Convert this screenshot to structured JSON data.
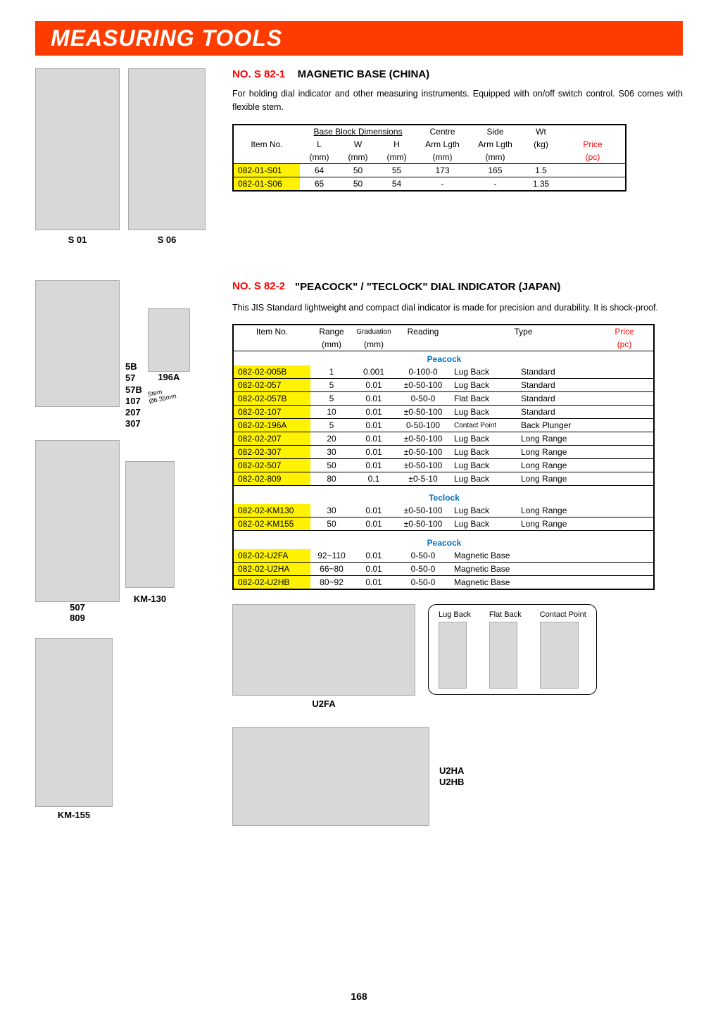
{
  "page_title": "MEASURING TOOLS",
  "page_number": "168",
  "section1": {
    "no": "NO. S 82-1",
    "title": "MAGNETIC BASE (CHINA)",
    "desc": "For holding dial indicator and other measuring instruments. Equipped with  on/off switch control. S06 comes with flexible stem.",
    "img_labels": {
      "s01": "S 01",
      "s06": "S 06"
    },
    "header_group": "Base Block Dimensions",
    "cols": {
      "item": "Item No.",
      "L": "L",
      "W": "W",
      "H": "H",
      "centre": "Centre",
      "side": "Side",
      "wt": "Wt",
      "price": "Price",
      "armlgth": "Arm Lgth",
      "mm": "(mm)",
      "kg": "(kg)",
      "pc": "(pc)"
    },
    "rows": [
      {
        "item": "082-01-S01",
        "L": "64",
        "W": "50",
        "H": "55",
        "centre": "173",
        "side": "165",
        "wt": "1.5",
        "price": ""
      },
      {
        "item": "082-01-S06",
        "L": "65",
        "W": "50",
        "H": "54",
        "centre": "-",
        "side": "-",
        "wt": "1.35",
        "price": ""
      }
    ]
  },
  "section2": {
    "no": "NO. S 82-2",
    "title": "\"PEACOCK\" / \"TECLOCK\" DIAL INDICATOR (JAPAN)",
    "desc": "This JIS Standard lightweight and compact dial indicator is made for precision and durability. It is shock-proof.",
    "left_labels": {
      "a": "5B\n57\n57B\n107\n207\n307",
      "b": "196A",
      "stem": "Stem\nØ6.35mm",
      "c": "507\n809",
      "d": "KM-130",
      "e": "KM-155"
    },
    "cols": {
      "item": "Item No.",
      "range": "Range",
      "grad": "Graduation",
      "reading": "Reading",
      "type": "Type",
      "price": "Price",
      "mm": "(mm)",
      "pc": "(pc)"
    },
    "groups": [
      {
        "name": "Peacock",
        "rows": [
          {
            "item": "082-02-005B",
            "range": "1",
            "grad": "0.001",
            "reading": "0-100-0",
            "type1": "Lug Back",
            "type2": "Standard"
          },
          {
            "item": "082-02-057",
            "range": "5",
            "grad": "0.01",
            "reading": "±0-50-100",
            "type1": "Lug Back",
            "type2": "Standard"
          },
          {
            "item": "082-02-057B",
            "range": "5",
            "grad": "0.01",
            "reading": "0-50-0",
            "type1": "Flat Back",
            "type2": "Standard"
          },
          {
            "item": "082-02-107",
            "range": "10",
            "grad": "0.01",
            "reading": "±0-50-100",
            "type1": "Lug Back",
            "type2": "Standard"
          },
          {
            "item": "082-02-196A",
            "range": "5",
            "grad": "0.01",
            "reading": "0-50-100",
            "type1": "Contact Point",
            "type2": "Back Plunger",
            "small1": true
          },
          {
            "item": "082-02-207",
            "range": "20",
            "grad": "0.01",
            "reading": "±0-50-100",
            "type1": "Lug Back",
            "type2": "Long Range"
          },
          {
            "item": "082-02-307",
            "range": "30",
            "grad": "0.01",
            "reading": "±0-50-100",
            "type1": "Lug Back",
            "type2": "Long Range"
          },
          {
            "item": "082-02-507",
            "range": "50",
            "grad": "0.01",
            "reading": "±0-50-100",
            "type1": "Lug Back",
            "type2": "Long Range"
          },
          {
            "item": "082-02-809",
            "range": "80",
            "grad": "0.1",
            "reading": "±0-5-10",
            "type1": "Lug Back",
            "type2": "Long Range"
          }
        ]
      },
      {
        "name": "Teclock",
        "rows": [
          {
            "item": "082-02-KM130",
            "range": "30",
            "grad": "0.01",
            "reading": "±0-50-100",
            "type1": "Lug Back",
            "type2": "Long Range"
          },
          {
            "item": "082-02-KM155",
            "range": "50",
            "grad": "0.01",
            "reading": "±0-50-100",
            "type1": "Lug Back",
            "type2": "Long Range"
          }
        ]
      },
      {
        "name": "Peacock",
        "rows": [
          {
            "item": "082-02-U2FA",
            "range": "92~110",
            "grad": "0.01",
            "reading": "0-50-0",
            "type1": "Magnetic Base",
            "type2": ""
          },
          {
            "item": "082-02-U2HA",
            "range": "66~80",
            "grad": "0.01",
            "reading": "0-50-0",
            "type1": "Magnetic Base",
            "type2": ""
          },
          {
            "item": "082-02-U2HB",
            "range": "80~92",
            "grad": "0.01",
            "reading": "0-50-0",
            "type1": "Magnetic Base",
            "type2": ""
          }
        ]
      }
    ],
    "bottom_labels": {
      "u2fa": "U2FA",
      "u2ha": "U2HA\nU2HB"
    },
    "backtypes": [
      "Lug Back",
      "Flat Back",
      "Contact Point"
    ]
  }
}
